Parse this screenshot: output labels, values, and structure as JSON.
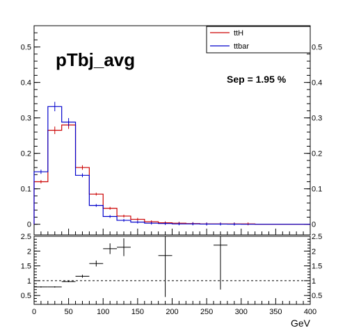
{
  "chart_data": [
    {
      "type": "histogram",
      "title": "pTbj_avg",
      "annotation": "Sep = 1.95 %",
      "xlim": [
        0,
        400
      ],
      "ylim": [
        -0.03,
        0.56
      ],
      "yticks": [
        "0",
        "0.1",
        "0.2",
        "0.3",
        "0.4",
        "0.5"
      ],
      "bin_edges": [
        0,
        20,
        40,
        60,
        80,
        100,
        120,
        140,
        160,
        180,
        200,
        220,
        240,
        260,
        280,
        300,
        320,
        340,
        360,
        380,
        400
      ],
      "legend_position": "top-right",
      "series": [
        {
          "name": "ttH",
          "color": "#cc0000",
          "values": [
            0.12,
            0.265,
            0.28,
            0.16,
            0.085,
            0.045,
            0.023,
            0.014,
            0.007,
            0.004,
            0.003,
            0.002,
            0.001,
            0.001,
            0.001,
            0.001,
            0,
            0,
            0,
            0
          ]
        },
        {
          "name": "ttbar",
          "color": "#0000cc",
          "values": [
            0.148,
            0.332,
            0.288,
            0.138,
            0.053,
            0.022,
            0.011,
            0.006,
            0.003,
            0.002,
            0.001,
            0.001,
            0.0005,
            0.0005,
            0.0003,
            0,
            0,
            0,
            0,
            0
          ]
        }
      ]
    },
    {
      "type": "scatter",
      "subtype": "ratio",
      "xlabel": "GeV",
      "xlim": [
        0,
        400
      ],
      "ylim": [
        0.2,
        2.5
      ],
      "xticks": [
        "0",
        "50",
        "100",
        "150",
        "200",
        "250",
        "300",
        "350",
        "400"
      ],
      "yticks": [
        "0.5",
        "1",
        "1.5",
        "2",
        "2.5"
      ],
      "reference_line": 1,
      "points": [
        {
          "x": 10,
          "y": 0.79,
          "xerr": 10,
          "yerr": 0.02
        },
        {
          "x": 30,
          "y": 0.79,
          "xerr": 10,
          "yerr": 0.02
        },
        {
          "x": 50,
          "y": 0.97,
          "xerr": 10,
          "yerr": 0.02
        },
        {
          "x": 70,
          "y": 1.15,
          "xerr": 10,
          "yerr": 0.05
        },
        {
          "x": 90,
          "y": 1.58,
          "xerr": 10,
          "yerr": 0.1
        },
        {
          "x": 110,
          "y": 2.08,
          "xerr": 10,
          "yerr": 0.18
        },
        {
          "x": 130,
          "y": 2.13,
          "xerr": 10,
          "yerr": 0.3
        },
        {
          "x": 190,
          "y": 1.85,
          "xerr": 10,
          "yerr": 1.4
        },
        {
          "x": 270,
          "y": 2.2,
          "xerr": 10,
          "yerr": 1.5
        }
      ]
    }
  ]
}
